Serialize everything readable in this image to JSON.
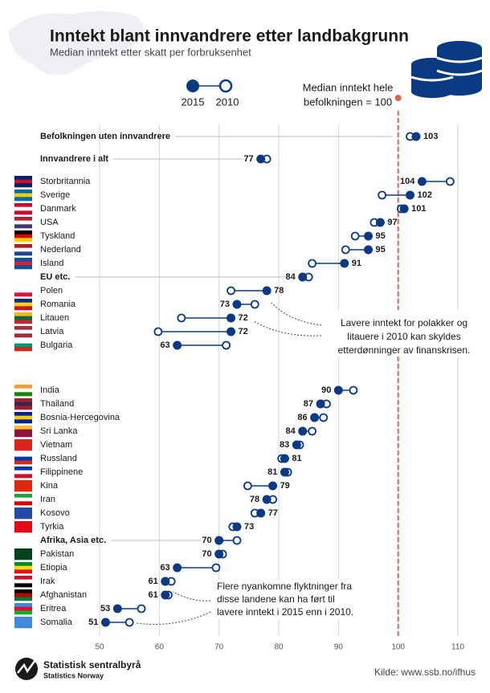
{
  "chart_data": {
    "type": "dumbbell",
    "title": "Inntekt blant innvandrere etter landbakgrunn",
    "subtitle": "Median inntekt etter skatt per forbruksenhet",
    "reference_label": [
      "Median inntekt hele",
      "befolkningen = 100"
    ],
    "reference_line": 100,
    "reference_color": "#d9694e",
    "categories": [
      "Befolkningen uten innvandrere",
      "Innvandrere i alt",
      "Storbritannia",
      "Sverige",
      "Danmark",
      "USA",
      "Tyskland",
      "Nederland",
      "Island",
      "EU etc.",
      "Polen",
      "Romania",
      "Litauen",
      "Latvia",
      "Bulgaria",
      "India",
      "Thailand",
      "Bosnia-Hercegovina",
      "Sri Lanka",
      "Vietnam",
      "Russland",
      "Filippinene",
      "Kina",
      "Iran",
      "Kosovo",
      "Tyrkia",
      "Afrika, Asia etc.",
      "Pakistan",
      "Etiopia",
      "Irak",
      "Afghanistan",
      "Eritrea",
      "Somalia"
    ],
    "series": [
      {
        "name": "2015",
        "color": "#0b3a82",
        "values": [
          103,
          77,
          104,
          102,
          101,
          97,
          95,
          95,
          91,
          84,
          78,
          73,
          72,
          72,
          63,
          90,
          87,
          86,
          84,
          83,
          81,
          81,
          79,
          78,
          77,
          73,
          70,
          70,
          63,
          61,
          61,
          53,
          51
        ]
      },
      {
        "name": "2010",
        "color": "#0b3a82",
        "values": [
          102,
          78,
          108.7,
          97.3,
          100.5,
          96,
          92.8,
          91.2,
          85.6,
          85,
          72,
          76,
          63.7,
          59.8,
          71.2,
          92.5,
          88,
          87.5,
          85.6,
          83.5,
          80.5,
          81.5,
          74.8,
          79,
          76,
          72.3,
          73,
          70.6,
          69.5,
          62,
          61.5,
          57,
          55
        ]
      }
    ],
    "xlim": [
      50,
      110
    ],
    "xticks": [
      50,
      60,
      70,
      80,
      90,
      100,
      110
    ],
    "grid": true,
    "annotations": [
      [
        "Lavere inntekt for polakker og",
        "litauere i 2010 kan skyldes",
        "etterdønninger av finanskrisen."
      ],
      [
        "Flere nyankomne flyktninger fra",
        "disse landene kan ha ført til",
        "lavere inntekt i 2015 enn i 2010."
      ]
    ],
    "logo": [
      "Statistisk sentralbyrå",
      "Statistics Norway"
    ],
    "source": "Kilde: www.ssb.no/ifhus"
  }
}
